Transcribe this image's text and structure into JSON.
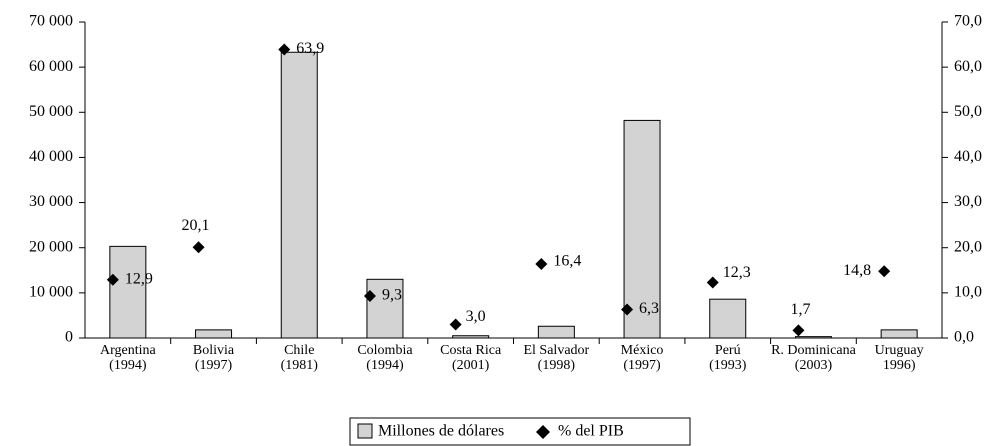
{
  "chart_data": {
    "type": "bar",
    "categories": [
      [
        "Argentina",
        "(1994)"
      ],
      [
        "Bolivia",
        "(1997)"
      ],
      [
        "Chile",
        "(1981)"
      ],
      [
        "Colombia",
        "(1994)"
      ],
      [
        "Costa Rica",
        "(2001)"
      ],
      [
        "El Salvador",
        "(1998)"
      ],
      [
        "México",
        "(1997)"
      ],
      [
        "Perú",
        "(1993)"
      ],
      [
        "R. Dominicana",
        "(2003)"
      ],
      [
        "Uruguay",
        "1996)"
      ]
    ],
    "series": [
      {
        "name": "Millones de dólares",
        "type": "bar",
        "color": "#d3d3d3",
        "values": [
          20300,
          1800,
          63300,
          13000,
          500,
          2600,
          48200,
          8600,
          300,
          1800
        ]
      },
      {
        "name": "% del PIB",
        "type": "scatter",
        "axis": "y2",
        "color": "#000000",
        "values": [
          12.9,
          20.1,
          63.9,
          9.3,
          3.0,
          16.4,
          6.3,
          12.3,
          1.7,
          14.8
        ],
        "value_labels": [
          "12,9",
          "20,1",
          "63,9",
          "9,3",
          "3,0",
          "16,4",
          "6,3",
          "12,3",
          "1,7",
          "14,8"
        ]
      }
    ],
    "ylim": [
      0,
      70000
    ],
    "yticks": [
      0,
      {
        "value": 10000,
        "label": "10 000"
      },
      {
        "value": 20000,
        "label": "20 000"
      },
      {
        "value": 30000,
        "label": "30 000"
      },
      {
        "value": 40000,
        "label": "40 000"
      },
      {
        "value": 50000,
        "label": "50 000"
      },
      {
        "value": 60000,
        "label": "60 000"
      },
      {
        "value": 70000,
        "label": "70 000"
      }
    ],
    "y2lim": [
      0,
      70
    ],
    "y2ticks": [
      {
        "value": 0,
        "label": "0,0"
      },
      {
        "value": 10,
        "label": "10,0"
      },
      {
        "value": 20,
        "label": "20,0"
      },
      {
        "value": 30,
        "label": "30,0"
      },
      {
        "value": 40,
        "label": "40,0"
      },
      {
        "value": 50,
        "label": "50,0"
      },
      {
        "value": 60,
        "label": "60,0"
      },
      {
        "value": 70,
        "label": "70,0"
      }
    ],
    "legend": "bottom"
  }
}
